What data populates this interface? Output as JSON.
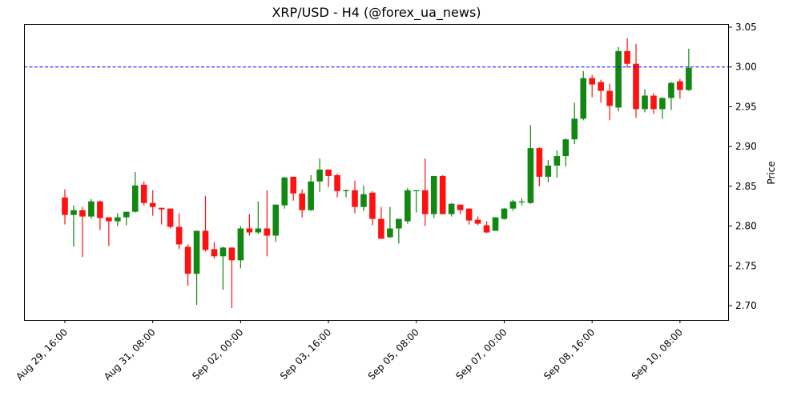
{
  "chart_data": {
    "type": "candlestick",
    "title": "XRP/USD - H4 (@forex_ua_news)",
    "xlabel": "",
    "ylabel": "Price",
    "ylim": [
      2.68,
      3.054
    ],
    "y_ticks": [
      "2.70",
      "2.75",
      "2.80",
      "2.85",
      "2.90",
      "2.95",
      "3.00",
      "3.05"
    ],
    "x_ticks": [
      {
        "label": "Aug 29, 16:00",
        "index": 0
      },
      {
        "label": "Aug 31, 08:00",
        "index": 10
      },
      {
        "label": "Sep 02, 00:00",
        "index": 20
      },
      {
        "label": "Sep 03, 16:00",
        "index": 30
      },
      {
        "label": "Sep 05, 08:00",
        "index": 40
      },
      {
        "label": "Sep 07, 00:00",
        "index": 50
      },
      {
        "label": "Sep 08, 16:00",
        "index": 60
      },
      {
        "label": "Sep 10, 08:00",
        "index": 70
      }
    ],
    "interval": "4h",
    "start": "Aug 29, 16:00",
    "horizontal_line": {
      "value": 3.0,
      "color": "#0000ff",
      "style": "dashed"
    },
    "colors": {
      "up": "#118811",
      "down": "#ff1111"
    },
    "grid": false,
    "ohlc": [
      [
        2.836,
        2.846,
        2.802,
        2.814
      ],
      [
        2.814,
        2.826,
        2.774,
        2.82
      ],
      [
        2.82,
        2.824,
        2.761,
        2.812
      ],
      [
        2.812,
        2.834,
        2.809,
        2.831
      ],
      [
        2.831,
        2.832,
        2.795,
        2.81
      ],
      [
        2.811,
        2.811,
        2.775,
        2.806
      ],
      [
        2.806,
        2.816,
        2.8,
        2.811
      ],
      [
        2.811,
        2.818,
        2.801,
        2.818
      ],
      [
        2.818,
        2.868,
        2.817,
        2.851
      ],
      [
        2.852,
        2.856,
        2.826,
        2.829
      ],
      [
        2.829,
        2.845,
        2.813,
        2.824
      ],
      [
        2.823,
        2.823,
        2.802,
        2.821
      ],
      [
        2.822,
        2.822,
        2.797,
        2.799
      ],
      [
        2.799,
        2.816,
        2.771,
        2.777
      ],
      [
        2.774,
        2.777,
        2.725,
        2.74
      ],
      [
        2.74,
        2.794,
        2.701,
        2.794
      ],
      [
        2.794,
        2.838,
        2.768,
        2.77
      ],
      [
        2.771,
        2.78,
        2.759,
        2.762
      ],
      [
        2.762,
        2.774,
        2.72,
        2.773
      ],
      [
        2.773,
        2.773,
        2.697,
        2.757
      ],
      [
        2.757,
        2.8,
        2.747,
        2.797
      ],
      [
        2.797,
        2.815,
        2.788,
        2.792
      ],
      [
        2.792,
        2.831,
        2.79,
        2.797
      ],
      [
        2.797,
        2.845,
        2.762,
        2.788
      ],
      [
        2.788,
        2.827,
        2.78,
        2.827
      ],
      [
        2.826,
        2.862,
        2.822,
        2.861
      ],
      [
        2.862,
        2.862,
        2.832,
        2.841
      ],
      [
        2.841,
        2.846,
        2.811,
        2.82
      ],
      [
        2.82,
        2.864,
        2.819,
        2.856
      ],
      [
        2.856,
        2.885,
        2.843,
        2.871
      ],
      [
        2.871,
        2.871,
        2.849,
        2.863
      ],
      [
        2.864,
        2.866,
        2.836,
        2.844
      ],
      [
        2.845,
        2.846,
        2.836,
        2.845
      ],
      [
        2.845,
        2.857,
        2.816,
        2.824
      ],
      [
        2.824,
        2.851,
        2.819,
        2.84
      ],
      [
        2.842,
        2.844,
        2.801,
        2.809
      ],
      [
        2.809,
        2.824,
        2.784,
        2.784
      ],
      [
        2.786,
        2.824,
        2.785,
        2.797
      ],
      [
        2.797,
        2.809,
        2.778,
        2.809
      ],
      [
        2.806,
        2.848,
        2.803,
        2.845
      ],
      [
        2.845,
        2.845,
        2.817,
        2.845
      ],
      [
        2.845,
        2.885,
        2.8,
        2.815
      ],
      [
        2.815,
        2.863,
        2.81,
        2.863
      ],
      [
        2.863,
        2.864,
        2.815,
        2.815
      ],
      [
        2.815,
        2.829,
        2.812,
        2.828
      ],
      [
        2.827,
        2.827,
        2.815,
        2.82
      ],
      [
        2.822,
        2.822,
        2.802,
        2.807
      ],
      [
        2.808,
        2.812,
        2.801,
        2.803
      ],
      [
        2.801,
        2.806,
        2.791,
        2.792
      ],
      [
        2.794,
        2.811,
        2.794,
        2.811
      ],
      [
        2.809,
        2.823,
        2.808,
        2.822
      ],
      [
        2.822,
        2.833,
        2.819,
        2.831
      ],
      [
        2.831,
        2.835,
        2.826,
        2.831
      ],
      [
        2.829,
        2.927,
        2.828,
        2.898
      ],
      [
        2.898,
        2.899,
        2.85,
        2.862
      ],
      [
        2.862,
        2.883,
        2.855,
        2.876
      ],
      [
        2.876,
        2.895,
        2.861,
        2.888
      ],
      [
        2.888,
        2.91,
        2.875,
        2.909
      ],
      [
        2.909,
        2.955,
        2.903,
        2.935
      ],
      [
        2.935,
        2.995,
        2.933,
        2.986
      ],
      [
        2.986,
        2.99,
        2.962,
        2.978
      ],
      [
        2.981,
        2.984,
        2.955,
        2.97
      ],
      [
        2.97,
        2.979,
        2.933,
        2.951
      ],
      [
        2.949,
        3.025,
        2.944,
        3.02
      ],
      [
        3.02,
        3.036,
        2.999,
        3.004
      ],
      [
        3.004,
        3.029,
        2.936,
        2.947
      ],
      [
        2.947,
        2.972,
        2.943,
        2.964
      ],
      [
        2.964,
        2.967,
        2.941,
        2.947
      ],
      [
        2.947,
        2.962,
        2.935,
        2.961
      ],
      [
        2.961,
        2.981,
        2.946,
        2.98
      ],
      [
        2.982,
        2.985,
        2.96,
        2.971
      ],
      [
        2.971,
        3.023,
        2.97,
        2.999
      ]
    ]
  }
}
